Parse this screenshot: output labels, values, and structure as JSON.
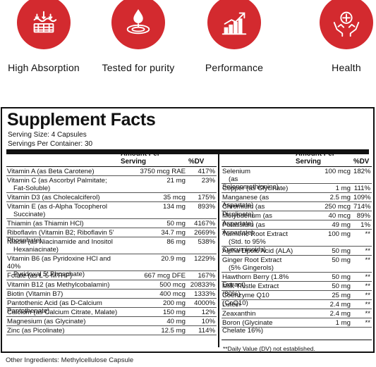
{
  "colors": {
    "brand_red": "#d32a2f",
    "ink": "#111111"
  },
  "benefits": [
    {
      "label": "High Absorption",
      "icon": "water-absorption-icon"
    },
    {
      "label": "Tested for purity",
      "icon": "water-drop-icon"
    },
    {
      "label": "Performance",
      "icon": "growth-chart-icon"
    },
    {
      "label": "Health",
      "icon": "hands-medical-cross-icon"
    }
  ],
  "facts": {
    "title": "Supplement Facts",
    "serving_size": "Serving Size: 4 Capsules",
    "servings_per_container": "Servings Per Container: 30",
    "header": {
      "amount": "Amount Per Serving",
      "dv": "%DV"
    },
    "left_rows": [
      {
        "name": "Vitamin A (as Beta Carotene)",
        "amount": "3750 mcg RAE",
        "dv": "417%"
      },
      {
        "name": "Vitamin C (as Ascorbyl Palmitate;",
        "name2": "Fat-Soluble)",
        "amount": "21 mg",
        "dv": "23%"
      },
      {
        "name": "Vitamin D3 (as Cholecalciferol)",
        "amount": "35 mcg",
        "dv": "175%"
      },
      {
        "name": "Vitamin E (as d-Alpha Tocopherol",
        "name2": "Succinate)",
        "amount": "134 mg",
        "dv": "893%"
      },
      {
        "name": "Thiamin (as Thiamin HCl)",
        "amount": "50 mg",
        "dv": "4167%"
      },
      {
        "name": "Riboflavin (Vitamin B2; Riboflavin 5' Phosphate)",
        "amount": "34.7 mg",
        "dv": "2669%"
      },
      {
        "name": "Niacin (as Niacinamide and Inositol",
        "name2": "Hexaniacinate)",
        "amount": "86 mg",
        "dv": "538%"
      },
      {
        "name": "Vitamin B6 (as Pyridoxine HCl and 40%",
        "name2": "Pyridoxal 5' Phosphate)",
        "amount": "20.9 mg",
        "dv": "1229%"
      },
      {
        "name": "Folate (as L-5-MTHF)",
        "amount": "667 mcg DFE",
        "dv": "167%"
      },
      {
        "name": "Vitamin B12 (as Methylcobalamin)",
        "amount": "500 mcg",
        "dv": "20833%"
      },
      {
        "name": "Biotin (Vitamin B7)",
        "amount": "400 mcg",
        "dv": "1333%"
      },
      {
        "name": "Pantothenic Acid (as D-Calcium Pantothenate)",
        "amount": "200 mg",
        "dv": "4000%"
      },
      {
        "name": "Calcium (as Calcium Citrate, Malate)",
        "amount": "150 mg",
        "dv": "12%"
      },
      {
        "name": "Magnesium (as Glycinate)",
        "amount": "40 mg",
        "dv": "10%"
      },
      {
        "name": "Zinc (as Picolinate)",
        "amount": "12.5 mg",
        "dv": "114%"
      }
    ],
    "right_rows": [
      {
        "name": "Selenium",
        "name2": "(as Selenomethionine)",
        "amount": "100 mcg",
        "dv": "182%"
      },
      {
        "name": "Copper (as Glycinate)",
        "amount": "1 mg",
        "dv": "111%"
      },
      {
        "name": "Manganese (as Aspartate)",
        "amount": "2.5 mg",
        "dv": "109%"
      },
      {
        "name": "Chromium (as Picolinate)",
        "amount": "250 mcg",
        "dv": "714%"
      },
      {
        "name": "Molybdenum (as Aspartate)",
        "amount": "40 mcg",
        "dv": "89%"
      },
      {
        "name": "Potassium (as Aspartate)",
        "amount": "49 mg",
        "dv": "1%"
      },
      {
        "name": "Turmeric Root Extract",
        "name2": "(Std. to 95% Curcuminoids)",
        "amount": "100 mg",
        "dv": "**"
      },
      {
        "name": "Alpha Lipoic Acid (ALA)",
        "amount": "50 mg",
        "dv": "**"
      },
      {
        "name": "Ginger Root Extract",
        "name2": "(5% Gingerols)",
        "amount": "50 mg",
        "dv": "**"
      },
      {
        "name": "Hawthorn Berry (1.8% Extract)",
        "amount": "50 mg",
        "dv": "**"
      },
      {
        "name": "Milk Thistle Extract (80%)",
        "amount": "50 mg",
        "dv": "**"
      },
      {
        "name": "Coenzyme Q10 (CoQ10)",
        "amount": "25 mg",
        "dv": "**"
      },
      {
        "name": "Lutein",
        "amount": "2.4 mg",
        "dv": "**"
      },
      {
        "name": "Zeaxanthin",
        "amount": "2.4 mg",
        "dv": "**"
      },
      {
        "name": "Boron (Glycinate Chelate 16%)",
        "amount": "1 mg",
        "dv": "**"
      }
    ],
    "footnote": "**Daily Value (DV) not established."
  },
  "other_ingredients": "Other Ingredients: Methylcellulose Capsule"
}
